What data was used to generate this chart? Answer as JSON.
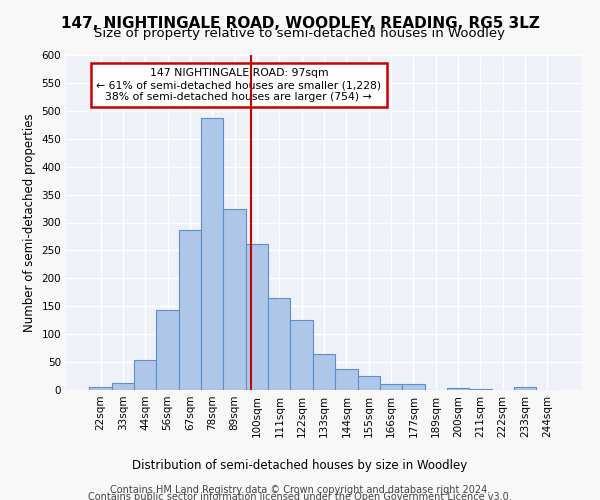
{
  "title": "147, NIGHTINGALE ROAD, WOODLEY, READING, RG5 3LZ",
  "subtitle": "Size of property relative to semi-detached houses in Woodley",
  "xlabel_bottom": "Distribution of semi-detached houses by size in Woodley",
  "ylabel": "Number of semi-detached properties",
  "bin_labels": [
    "22sqm",
    "33sqm",
    "44sqm",
    "56sqm",
    "67sqm",
    "78sqm",
    "89sqm",
    "100sqm",
    "111sqm",
    "122sqm",
    "133sqm",
    "144sqm",
    "155sqm",
    "166sqm",
    "177sqm",
    "189sqm",
    "200sqm",
    "211sqm",
    "222sqm",
    "233sqm",
    "244sqm"
  ],
  "bar_values": [
    6,
    12,
    53,
    144,
    287,
    487,
    325,
    261,
    165,
    126,
    64,
    37,
    25,
    10,
    10,
    0,
    4,
    2,
    0,
    5,
    0
  ],
  "bar_color": "#aec6e8",
  "bar_edge_color": "#5b8fc9",
  "vline_color": "#cc0000",
  "annotation_line1": "147 NIGHTINGALE ROAD: 97sqm",
  "annotation_line2": "← 61% of semi-detached houses are smaller (1,228)",
  "annotation_line3": "38% of semi-detached houses are larger (754) →",
  "annotation_box_color": "#ffffff",
  "annotation_box_edge_color": "#cc0000",
  "footer1": "Contains HM Land Registry data © Crown copyright and database right 2024.",
  "footer2": "Contains public sector information licensed under the Open Government Licence v3.0.",
  "ylim": [
    0,
    600
  ],
  "yticks": [
    0,
    50,
    100,
    150,
    200,
    250,
    300,
    350,
    400,
    450,
    500,
    550,
    600
  ],
  "bg_color": "#eef2f8",
  "grid_color": "#ffffff",
  "title_fontsize": 11,
  "subtitle_fontsize": 9.5,
  "axis_label_fontsize": 8.5,
  "tick_fontsize": 7.5,
  "footer_fontsize": 7
}
